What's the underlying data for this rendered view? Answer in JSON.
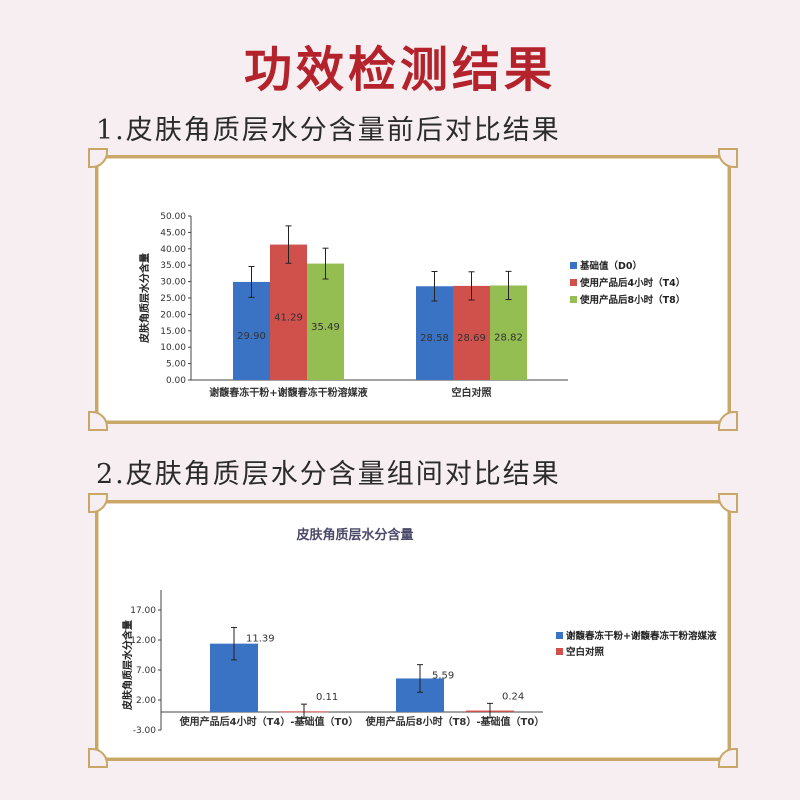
{
  "page": {
    "title": "功效检测结果",
    "section1_title": "1.皮肤角质层水分含量前后对比结果",
    "section2_title": "2.皮肤角质层水分含量组间对比结果"
  },
  "colors": {
    "title_red": "#b4222c",
    "series_blue": "#3a73c4",
    "series_red": "#d0504c",
    "series_green": "#94bd52",
    "frame_gold": "#c9a769"
  },
  "chart_data": [
    {
      "type": "bar",
      "title": "",
      "ylabel": "皮肤角质层水分含量",
      "xlabel": "",
      "ylim": [
        0,
        50
      ],
      "yticks": [
        "0.00",
        "5.00",
        "10.00",
        "15.00",
        "20.00",
        "25.00",
        "30.00",
        "35.00",
        "40.00",
        "45.00",
        "50.00"
      ],
      "categories": [
        "谢馥春冻干粉+谢馥春冻干粉溶媒液",
        "空白对照"
      ],
      "series": [
        {
          "name": "基础值（D0）",
          "values": [
            29.9,
            28.58
          ],
          "errors": [
            4.7,
            4.5
          ],
          "labels": [
            "29.90",
            "28.58"
          ]
        },
        {
          "name": "使用产品后4小时（T4）",
          "values": [
            41.29,
            28.69
          ],
          "errors": [
            5.7,
            4.3
          ],
          "labels": [
            "41.29",
            "28.69"
          ]
        },
        {
          "name": "使用产品后8小时（T8）",
          "values": [
            35.49,
            28.82
          ],
          "errors": [
            4.7,
            4.3
          ],
          "labels": [
            "35.49",
            "28.82"
          ]
        }
      ],
      "grid": false,
      "legend_position": "right"
    },
    {
      "type": "bar",
      "title": "皮肤角质层水分含量",
      "ylabel": "皮肤角质层水分含量",
      "xlabel": "",
      "ylim": [
        -3,
        17
      ],
      "yticks": [
        "-3.00",
        "2.00",
        "7.00",
        "12.00",
        "17.00"
      ],
      "categories": [
        "使用产品后4小时（T4）-基础值（T0）",
        "使用产品后8小时（T8）-基础值（T0）"
      ],
      "series": [
        {
          "name": "谢馥春冻干粉+谢馥春冻干粉溶媒液",
          "values": [
            11.39,
            5.59
          ],
          "errors": [
            2.7,
            2.3
          ],
          "labels": [
            "11.39",
            "5.59"
          ]
        },
        {
          "name": "空白对照",
          "values": [
            0.11,
            0.24
          ],
          "errors": [
            1.2,
            1.2
          ],
          "labels": [
            "0.11",
            "0.24"
          ]
        }
      ],
      "grid": false,
      "legend_position": "right"
    }
  ]
}
